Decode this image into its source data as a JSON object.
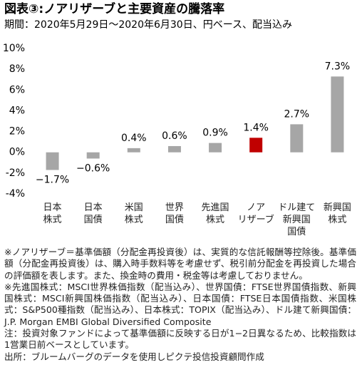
{
  "chart_data": {
    "type": "bar",
    "title": "図表③:ノアリザーブと主要資産の騰落率",
    "subtitle": "期間：2020年5月29日～2020年6月30日、円ベース、配当込み",
    "categories": [
      "日本\n株式",
      "日本\n国債",
      "米国\n株式",
      "世界\n国債",
      "先進国\n株式",
      "ノア\nリザーブ",
      "ドル建て\n新興国\n国債",
      "新興国\n株式"
    ],
    "values": [
      -1.7,
      -0.6,
      0.4,
      0.6,
      0.9,
      1.4,
      2.7,
      7.3
    ],
    "value_labels": [
      "−1.7%",
      "−0.6%",
      "0.4%",
      "0.6%",
      "0.9%",
      "1.4%",
      "2.7%",
      "7.3%"
    ],
    "colors": [
      "#a6a6a6",
      "#a6a6a6",
      "#a6a6a6",
      "#a6a6a6",
      "#a6a6a6",
      "#c00000",
      "#a6a6a6",
      "#a6a6a6"
    ],
    "ylim": [
      -4,
      10
    ],
    "yticks": [
      {
        "value": -4,
        "label": "-4%"
      },
      {
        "value": -2,
        "label": "-2%"
      },
      {
        "value": 0,
        "label": "0%"
      },
      {
        "value": 2,
        "label": "2%"
      },
      {
        "value": 4,
        "label": "4%"
      },
      {
        "value": 6,
        "label": "6%"
      },
      {
        "value": 8,
        "label": "8%"
      },
      {
        "value": 10,
        "label": "10%"
      }
    ],
    "grid": false
  },
  "notes": [
    "※ノアリザーブ＝基準価額（分配金再投資後）は、実質的な信託報酬等控除後。基準価額（分配金再投資後）は、購入時手数料等を考慮せず、税引前分配金を再投資した場合の評価額を表します。また、換金時の費用・税金等は考慮しておりません。",
    "※先進国株式：MSCI世界株価指数（配当込み）、世界国債：FTSE世界国債指数、新興国株式：MSCI新興国株価指数（配当込み）、日本国債：FTSE日本国債指数、米国株式：S&P500種指数（配当込み）、日本株式：TOPIX（配当込み）、ドル建て新興国債：J.P. Morgan EMBI Global Diversified Composite",
    "注：投資対象ファンドによって基準価額に反映する日が1−2日異なるため、比較指数は1営業日前ベースとしています。",
    "出所：ブルームバーグのデータを使用しピクテ投信投資顧問作成"
  ]
}
